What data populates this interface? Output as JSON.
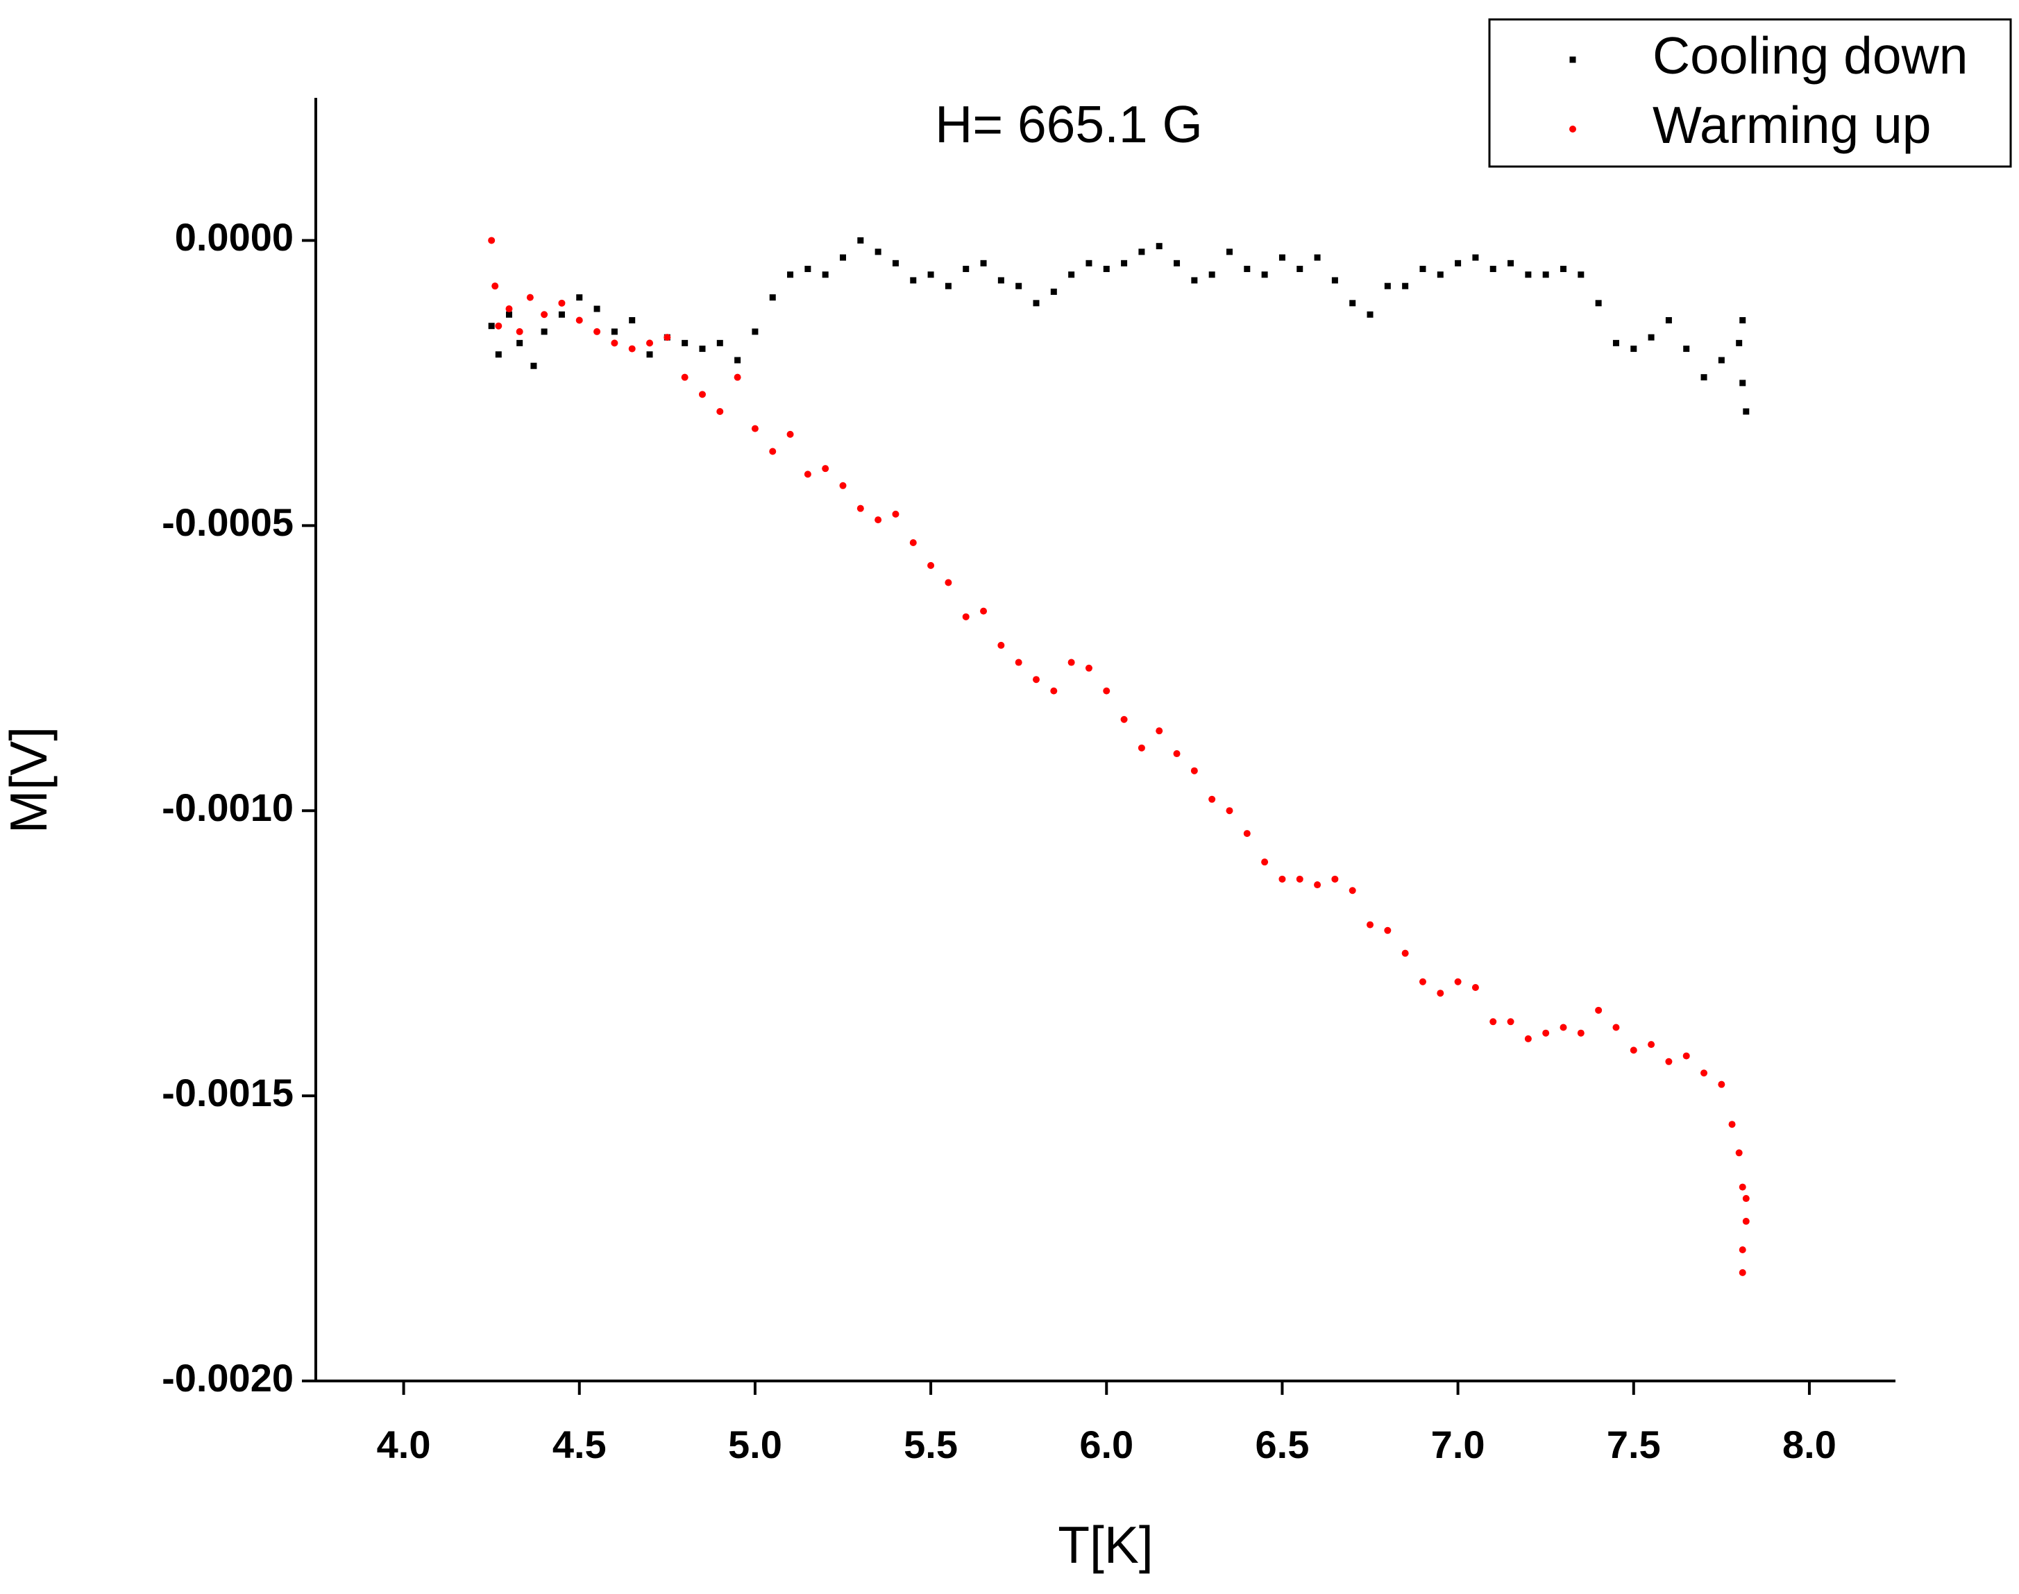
{
  "chart_data": {
    "type": "scatter",
    "title": "H= 665.1 G",
    "x_label": "T[K]",
    "y_label": "M[V]",
    "xlim": [
      3.75,
      8.245
    ],
    "ylim": [
      -0.002,
      0.00025
    ],
    "xticks": [
      {
        "value": 4.0,
        "label": "4.0"
      },
      4.5,
      {
        "value": 5.0,
        "label": "5.0"
      },
      5.5,
      {
        "value": 6.0,
        "label": "6.0"
      },
      6.5,
      {
        "value": 7.0,
        "label": "7.0"
      },
      7.5,
      {
        "value": 8.0,
        "label": "8.0"
      }
    ],
    "yticks": [
      {
        "value": 0,
        "label": "0.0000"
      },
      {
        "value": -0.0005,
        "label": "-0.0005"
      },
      {
        "value": -0.001,
        "label": "-0.0010"
      },
      {
        "value": -0.0015,
        "label": "-0.0015"
      },
      {
        "value": -0.002,
        "label": "-0.0020"
      }
    ],
    "legend": "upper right",
    "series": [
      {
        "name": "Cooling down",
        "color": "#000000",
        "marker": "square",
        "x": [
          4.25,
          4.27,
          4.3,
          4.33,
          4.37,
          4.4,
          4.45,
          4.5,
          4.55,
          4.6,
          4.65,
          4.7,
          4.75,
          4.8,
          4.85,
          4.9,
          4.95,
          5.0,
          5.05,
          5.1,
          5.15,
          5.2,
          5.25,
          5.3,
          5.35,
          5.4,
          5.45,
          5.5,
          5.55,
          5.6,
          5.65,
          5.7,
          5.75,
          5.8,
          5.85,
          5.9,
          5.95,
          6.0,
          6.05,
          6.1,
          6.15,
          6.2,
          6.25,
          6.3,
          6.35,
          6.4,
          6.45,
          6.5,
          6.55,
          6.6,
          6.65,
          6.7,
          6.75,
          6.8,
          6.85,
          6.9,
          6.95,
          7.0,
          7.05,
          7.1,
          7.15,
          7.2,
          7.25,
          7.3,
          7.35,
          7.4,
          7.45,
          7.5,
          7.55,
          7.6,
          7.65,
          7.7,
          7.75,
          7.8,
          7.81,
          7.82,
          7.81
        ],
        "values": [
          -0.00015,
          -0.0002,
          -0.00013,
          -0.00018,
          -0.00022,
          -0.00016,
          -0.00013,
          -0.0001,
          -0.00012,
          -0.00016,
          -0.00014,
          -0.0002,
          -0.00017,
          -0.00018,
          -0.00019,
          -0.00018,
          -0.00021,
          -0.00016,
          -0.0001,
          -6e-05,
          -5e-05,
          -6e-05,
          -3e-05,
          0,
          -2e-05,
          -4e-05,
          -7e-05,
          -6e-05,
          -8e-05,
          -5e-05,
          -4e-05,
          -7e-05,
          -8e-05,
          -0.00011,
          -9e-05,
          -6e-05,
          -4e-05,
          -5e-05,
          -4e-05,
          -2e-05,
          -1e-05,
          -4e-05,
          -7e-05,
          -6e-05,
          -2e-05,
          -5e-05,
          -6e-05,
          -3e-05,
          -5e-05,
          -3e-05,
          -7e-05,
          -0.00011,
          -0.00013,
          -8e-05,
          -8e-05,
          -5e-05,
          -6e-05,
          -4e-05,
          -3e-05,
          -5e-05,
          -4e-05,
          -6e-05,
          -6e-05,
          -5e-05,
          -6e-05,
          -0.00011,
          -0.00018,
          -0.00019,
          -0.00017,
          -0.00014,
          -0.00019,
          -0.00024,
          -0.00021,
          -0.00018,
          -0.00025,
          -0.0003,
          -0.00014
        ]
      },
      {
        "name": "Warming up",
        "color": "#ff0000",
        "marker": "circle",
        "x": [
          4.25,
          4.26,
          4.27,
          4.3,
          4.33,
          4.36,
          4.4,
          4.45,
          4.5,
          4.55,
          4.6,
          4.65,
          4.7,
          4.75,
          4.8,
          4.85,
          4.9,
          4.95,
          5.0,
          5.05,
          5.1,
          5.15,
          5.2,
          5.25,
          5.3,
          5.35,
          5.4,
          5.45,
          5.5,
          5.55,
          5.6,
          5.65,
          5.7,
          5.75,
          5.8,
          5.85,
          5.9,
          5.95,
          6.0,
          6.05,
          6.1,
          6.15,
          6.2,
          6.25,
          6.3,
          6.35,
          6.4,
          6.45,
          6.5,
          6.55,
          6.6,
          6.65,
          6.7,
          6.75,
          6.8,
          6.85,
          6.9,
          6.95,
          7.0,
          7.05,
          7.1,
          7.15,
          7.2,
          7.25,
          7.3,
          7.35,
          7.4,
          7.45,
          7.5,
          7.55,
          7.6,
          7.65,
          7.7,
          7.75,
          7.78,
          7.8,
          7.81,
          7.82,
          7.81,
          7.81,
          7.82
        ],
        "values": [
          0,
          -8e-05,
          -0.00015,
          -0.00012,
          -0.00016,
          -0.0001,
          -0.00013,
          -0.00011,
          -0.00014,
          -0.00016,
          -0.00018,
          -0.00019,
          -0.00018,
          -0.00017,
          -0.00024,
          -0.00027,
          -0.0003,
          -0.00024,
          -0.00033,
          -0.00037,
          -0.00034,
          -0.00041,
          -0.0004,
          -0.00043,
          -0.00047,
          -0.00049,
          -0.00048,
          -0.00053,
          -0.00057,
          -0.0006,
          -0.00066,
          -0.00065,
          -0.00071,
          -0.00074,
          -0.00077,
          -0.00079,
          -0.00074,
          -0.00075,
          -0.00079,
          -0.00084,
          -0.00089,
          -0.00086,
          -0.0009,
          -0.00093,
          -0.00098,
          -0.001,
          -0.00104,
          -0.00109,
          -0.00112,
          -0.00112,
          -0.00113,
          -0.00112,
          -0.00114,
          -0.0012,
          -0.00121,
          -0.00125,
          -0.0013,
          -0.00132,
          -0.0013,
          -0.00131,
          -0.00137,
          -0.00137,
          -0.0014,
          -0.00139,
          -0.00138,
          -0.00139,
          -0.00135,
          -0.00138,
          -0.00142,
          -0.00141,
          -0.00144,
          -0.00143,
          -0.00146,
          -0.00148,
          -0.00155,
          -0.0016,
          -0.00166,
          -0.00172,
          -0.00177,
          -0.00181,
          -0.00168
        ]
      }
    ]
  }
}
